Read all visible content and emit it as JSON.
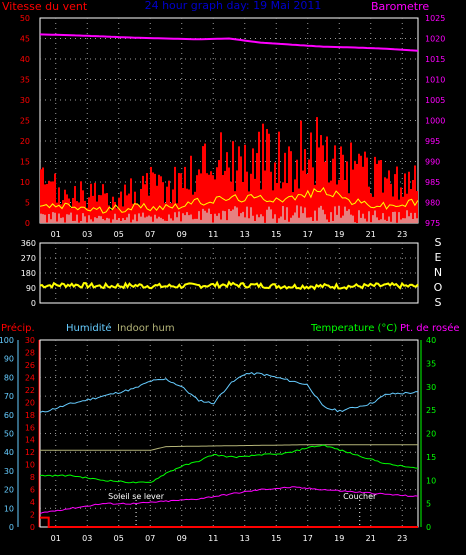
{
  "chart_data": [
    {
      "type": "bar",
      "title": "24 hour graph day: 19 Mai 2011",
      "left_axis_label": "Vitesse du vent",
      "right_axis_label": "Barometre",
      "left_ticks": [
        "0",
        "5",
        "10",
        "15",
        "20",
        "25",
        "30",
        "35",
        "40",
        "45",
        "50"
      ],
      "right_ticks": [
        "975",
        "980",
        "985",
        "990",
        "995",
        "1000",
        "1005",
        "1010",
        "1015",
        "1020",
        "1025"
      ],
      "x_ticks": [
        "01",
        "03",
        "05",
        "07",
        "09",
        "11",
        "13",
        "15",
        "17",
        "19",
        "21",
        "23"
      ],
      "left_range": [
        0,
        50
      ],
      "right_range": [
        975,
        1025
      ],
      "colors": {
        "gust": "#ff0000",
        "avg": "#ffff00",
        "base": "#ccffff",
        "baro": "#ff00ff",
        "left_axis": "#ff0000",
        "right_axis": "#ff00ff"
      },
      "series": [
        {
          "kind": "barometer",
          "hours": [
            0,
            2,
            4,
            6,
            8,
            10,
            12,
            14,
            16,
            18,
            20,
            22,
            24
          ],
          "values": [
            1021,
            1020.8,
            1020.5,
            1020.2,
            1020,
            1019.8,
            1020,
            1019,
            1018.5,
            1018,
            1017.8,
            1017.5,
            1017
          ]
        },
        {
          "kind": "gust",
          "hours": [
            0,
            1,
            2,
            3,
            4,
            5,
            6,
            7,
            8,
            9,
            10,
            11,
            12,
            13,
            14,
            15,
            16,
            17,
            18,
            19,
            20,
            21,
            22,
            23,
            24
          ],
          "values": [
            12,
            10,
            8,
            9,
            8,
            9,
            10,
            12,
            11,
            14,
            16,
            22,
            20,
            18,
            20,
            22,
            18,
            25,
            20,
            18,
            16,
            14,
            13,
            12,
            14
          ]
        },
        {
          "kind": "avg",
          "hours": [
            0,
            2,
            4,
            6,
            8,
            10,
            12,
            14,
            16,
            18,
            20,
            22,
            24
          ],
          "values": [
            4,
            4,
            3,
            4,
            4,
            5,
            6,
            6,
            6,
            8,
            5,
            4,
            5
          ]
        }
      ]
    },
    {
      "type": "line",
      "right_letters": [
        "S",
        "E",
        "N",
        "O",
        "S"
      ],
      "left_ticks": [
        "0",
        "90",
        "180",
        "270",
        "360"
      ],
      "y_range": [
        0,
        360
      ],
      "color": "#ffff00",
      "hours": [
        0,
        2,
        4,
        6,
        8,
        10,
        12,
        14,
        16,
        18,
        20,
        22,
        24
      ],
      "values": [
        105,
        110,
        100,
        105,
        100,
        105,
        110,
        105,
        100,
        100,
        100,
        105,
        100
      ]
    },
    {
      "type": "line",
      "header_labels": {
        "precip": "Précip.",
        "humidity": "Humidité",
        "indoor_hum": "Indoor hum",
        "temperature": "Temperature (°C)",
        "dewpoint": "Pt. de rosée"
      },
      "precip_ticks": [
        "0",
        "2",
        "4",
        "6",
        "8",
        "10",
        "12",
        "14",
        "16",
        "18",
        "20",
        "22",
        "24",
        "26",
        "28",
        "30"
      ],
      "humidity_ticks": [
        "0",
        "10",
        "20",
        "30",
        "40",
        "50",
        "60",
        "70",
        "80",
        "90",
        "100"
      ],
      "temp_ticks": [
        "0",
        "5",
        "10",
        "15",
        "20",
        "25",
        "30",
        "35",
        "40"
      ],
      "x_ticks": [
        "01",
        "03",
        "05",
        "07",
        "09",
        "11",
        "13",
        "15",
        "17",
        "19",
        "21",
        "23"
      ],
      "colors": {
        "precip": "#ff0000",
        "humidity": "#66ccff",
        "indoor_hum": "#b4b478",
        "temperature": "#00ff00",
        "dewpoint": "#ff00ff"
      },
      "annotations": [
        {
          "text": "Soleil se lever",
          "hour": 6.1
        },
        {
          "text": "Coucher",
          "hour": 20.3
        }
      ],
      "series": [
        {
          "name": "Humidité",
          "axis": "humidity",
          "hours": [
            0,
            2,
            4,
            6,
            7,
            8,
            9,
            10,
            11,
            12,
            13,
            14,
            15,
            16,
            17,
            18,
            19,
            20,
            21,
            22,
            24
          ],
          "values": [
            61,
            66,
            70,
            74,
            78,
            79,
            75,
            68,
            66,
            76,
            82,
            82,
            80,
            78,
            76,
            64,
            62,
            64,
            66,
            71,
            72
          ]
        },
        {
          "name": "Indoor hum",
          "axis": "humidity",
          "hours": [
            0,
            7,
            8,
            17,
            24
          ],
          "values": [
            41,
            41,
            43,
            44,
            44
          ]
        },
        {
          "name": "Temperature (°C)",
          "axis": "temp",
          "hours": [
            0,
            2,
            4,
            6,
            7,
            8,
            9,
            10,
            11,
            12,
            13,
            14,
            15,
            16,
            17,
            18,
            19,
            20,
            21,
            22,
            24
          ],
          "values": [
            11,
            11,
            10,
            9.5,
            9.5,
            11.5,
            13,
            14,
            15.5,
            15,
            15,
            15.5,
            15.5,
            16,
            17,
            17.5,
            16.5,
            15.5,
            14.5,
            13.5,
            12.5
          ]
        },
        {
          "name": "Pt. de rosée",
          "axis": "temp",
          "hours": [
            0,
            2,
            4,
            6,
            8,
            10,
            12,
            14,
            16,
            18,
            20,
            22,
            24
          ],
          "values": [
            3,
            4,
            5,
            5,
            5.5,
            6,
            7,
            8,
            8.5,
            8,
            7.5,
            7,
            6.5
          ]
        },
        {
          "name": "Précip.",
          "axis": "precip",
          "hours": [
            0,
            0.55,
            0.55,
            24
          ],
          "values": [
            1.5,
            1.5,
            0,
            0
          ]
        }
      ]
    }
  ]
}
